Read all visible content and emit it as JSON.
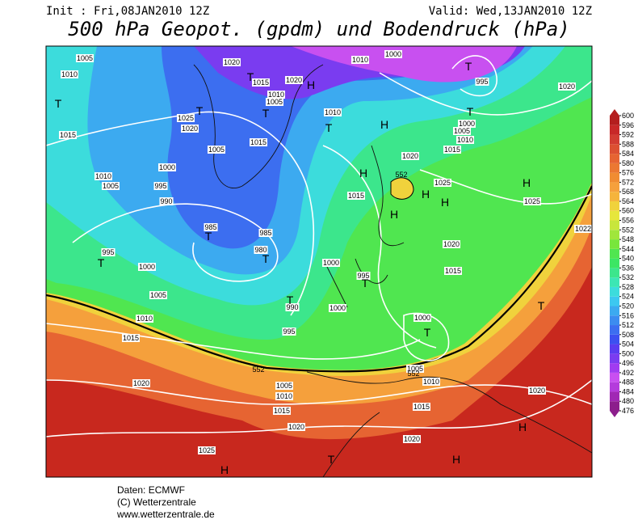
{
  "header": {
    "init": "Init : Fri,08JAN2010 12Z",
    "valid": "Valid: Wed,13JAN2010 12Z",
    "title": "500 hPa Geopot. (gpdm) und Bodendruck (hPa)"
  },
  "colorbar": {
    "levels": [
      476,
      480,
      484,
      488,
      492,
      496,
      500,
      504,
      508,
      512,
      516,
      520,
      524,
      528,
      532,
      536,
      540,
      544,
      548,
      552,
      556,
      560,
      564,
      568,
      572,
      576,
      580,
      584,
      588,
      592,
      596,
      600
    ],
    "colors": [
      "#8c1e8c",
      "#a028b4",
      "#b43cdc",
      "#c850f0",
      "#a03cf0",
      "#7a3cf0",
      "#5a3cf0",
      "#3c50f0",
      "#3c6ef0",
      "#3c8cf0",
      "#3caaf0",
      "#3cc8f0",
      "#3cdcdc",
      "#3ce6b4",
      "#3ce68c",
      "#3ce664",
      "#50e650",
      "#78e63c",
      "#a0e63c",
      "#c8e63c",
      "#e6e63c",
      "#f0d23c",
      "#f5b43c",
      "#f5a03c",
      "#f08c32",
      "#eb7832",
      "#e66432",
      "#dc5032",
      "#d23c32",
      "#c82828",
      "#b41e1e"
    ]
  },
  "map_labels": {
    "isobars": [
      1005,
      1010,
      1015,
      1010,
      1005,
      1000,
      995,
      990,
      985,
      985,
      980,
      995,
      1000,
      1005,
      1010,
      1015,
      1020,
      1025,
      990,
      995,
      1000,
      995,
      1000,
      1005,
      1010,
      1015,
      1020,
      1020,
      1015,
      1010,
      1005,
      1000,
      1020,
      1015,
      1025,
      1025,
      1020,
      1015,
      1015,
      1005,
      1025,
      1020,
      1020,
      1015,
      1020,
      1010,
      1005,
      1010,
      1010,
      1000,
      995,
      1000,
      1005,
      1010,
      1015,
      1020,
      1020,
      1022
    ],
    "contours": [
      552,
      552,
      552
    ],
    "centers": [
      "T",
      "T",
      "T",
      "H",
      "T",
      "T",
      "H",
      "T",
      "T",
      "H",
      "H",
      "H",
      "H",
      "H",
      "T",
      "T",
      "T",
      "T",
      "T",
      "T",
      "T",
      "T",
      "H",
      "H",
      "H"
    ]
  },
  "footer": [
    "Daten: ECMWF",
    "(C) Wetterzentrale",
    "www.wetterzentrale.de"
  ]
}
